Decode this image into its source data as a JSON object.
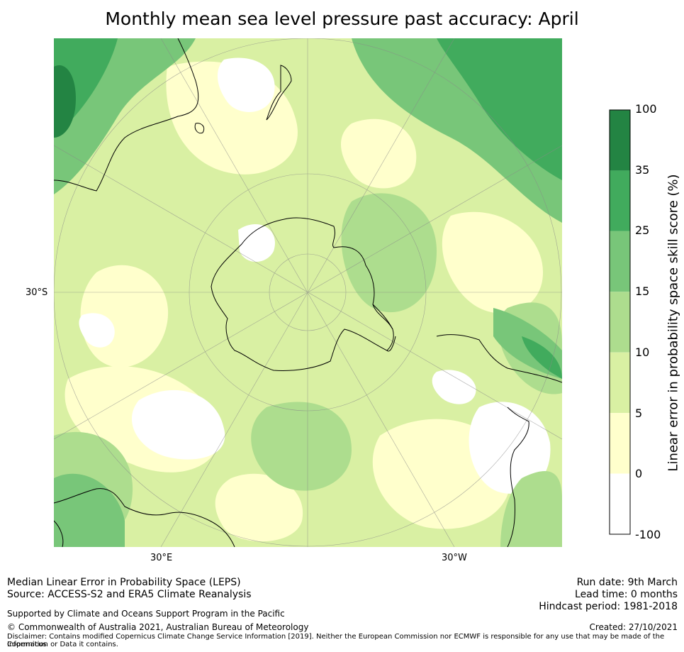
{
  "title": "Monthly mean sea level pressure past accuracy: April",
  "map": {
    "lat_labels": [
      "30°S"
    ],
    "lon_labels": [
      "30°E",
      "30°W"
    ],
    "colors": {
      "negative": "#ffffff",
      "c0_5": "#ffffcc",
      "c5_10": "#d9f0a3",
      "c10_15": "#addd8e",
      "c15_25": "#78c679",
      "c25_35": "#41ab5d",
      "c35_100": "#238443",
      "coastline": "#000000",
      "grid": "#888888"
    }
  },
  "colorbar": {
    "label": "Linear error in probability space skill score (%)",
    "ticks": [
      "100",
      "35",
      "25",
      "15",
      "10",
      "5",
      "0",
      "-100"
    ],
    "bins": [
      {
        "range": "35-100",
        "color": "#238443"
      },
      {
        "range": "25-35",
        "color": "#41ab5d"
      },
      {
        "range": "15-25",
        "color": "#78c679"
      },
      {
        "range": "10-15",
        "color": "#addd8e"
      },
      {
        "range": "5-10",
        "color": "#d9f0a3"
      },
      {
        "range": "0-5",
        "color": "#ffffcc"
      },
      {
        "range": "-100-0",
        "color": "#ffffff"
      }
    ]
  },
  "footer": {
    "line1": "Median Linear Error in Probability Space (LEPS)",
    "line2": "Source: ACCESS-S2 and ERA5 Climate Reanalysis",
    "support": "Supported by Climate and Oceans Support Program in the Pacific",
    "copyright": "© Commonwealth of Australia 2021, Australian Bureau of Meteorology",
    "disclaimer1": "Disclaimer: Contains modified Copernicus Climate Change Service Information [2019]. Neither the European Commission nor ECMWF is responsible for any use that may be made of the Copernicus",
    "disclaimer2": "Information or Data it contains.",
    "run_date": "Run date: 9th March",
    "lead_time": "Lead time: 0 months",
    "hindcast": "Hindcast period: 1981-2018",
    "created": "Created: 27/10/2021"
  }
}
